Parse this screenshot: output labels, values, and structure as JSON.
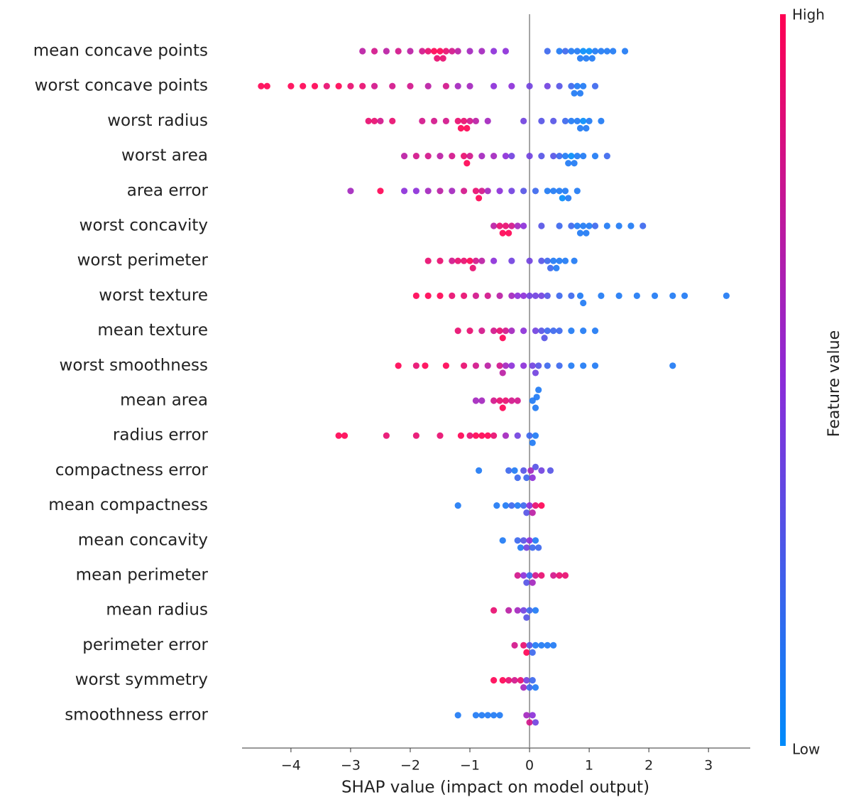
{
  "chart_data": {
    "type": "beeswarm",
    "xlabel": "SHAP value (impact on model output)",
    "xlim": [
      -4.82,
      3.7
    ],
    "xticks": [
      {
        "value": -4,
        "label": "−4"
      },
      {
        "value": -3,
        "label": "−3"
      },
      {
        "value": -2,
        "label": "−2"
      },
      {
        "value": -1,
        "label": "−1"
      },
      0,
      1,
      2,
      3
    ],
    "colorbar": {
      "label": "Feature value",
      "high": "High",
      "low": "Low",
      "colors": [
        "#008bfb",
        "#8b2bd8",
        "#ff0052"
      ]
    },
    "series": [
      {
        "name": "mean concave points",
        "values": [
          -2.8,
          -2.6,
          -2.4,
          -2.2,
          -2.0,
          -1.8,
          -1.7,
          -1.6,
          -1.55,
          -1.5,
          -1.45,
          -1.4,
          -1.3,
          -1.2,
          -1.0,
          -0.8,
          -0.6,
          -0.4,
          0.3,
          0.5,
          0.6,
          0.7,
          0.8,
          0.85,
          0.9,
          0.95,
          1.0,
          1.05,
          1.1,
          1.2,
          1.3,
          1.4,
          1.6
        ],
        "feature_values": [
          0.7,
          0.8,
          0.7,
          0.8,
          0.7,
          0.8,
          0.9,
          1,
          0.9,
          1,
          0.9,
          0.9,
          0.8,
          0.7,
          0.6,
          0.6,
          0.5,
          0.5,
          0.2,
          0.1,
          0.2,
          0.1,
          0.1,
          0.1,
          0,
          0.1,
          0,
          0.1,
          0.1,
          0.1,
          0.1,
          0.1,
          0.1
        ]
      },
      {
        "name": "worst concave points",
        "values": [
          -4.5,
          -4.4,
          -4.0,
          -3.8,
          -3.6,
          -3.4,
          -3.2,
          -3.0,
          -2.8,
          -2.6,
          -2.3,
          -2.0,
          -1.7,
          -1.4,
          -1.2,
          -1.0,
          -0.6,
          -0.3,
          0,
          0.3,
          0.5,
          0.7,
          0.75,
          0.8,
          0.85,
          0.9,
          1.1
        ],
        "feature_values": [
          1,
          1,
          1,
          1,
          1,
          0.9,
          1,
          0.9,
          0.9,
          0.8,
          0.8,
          0.8,
          0.7,
          0.8,
          0.6,
          0.6,
          0.5,
          0.5,
          0.4,
          0.4,
          0.3,
          0.2,
          0.1,
          0.1,
          0.1,
          0.1,
          0.2
        ]
      },
      {
        "name": "worst radius",
        "values": [
          -2.7,
          -2.6,
          -2.5,
          -2.3,
          -1.8,
          -1.6,
          -1.4,
          -1.2,
          -1.15,
          -1.1,
          -1.05,
          -1.0,
          -0.9,
          -0.7,
          -0.1,
          0.2,
          0.4,
          0.6,
          0.7,
          0.8,
          0.85,
          0.9,
          0.95,
          1.0,
          1.2
        ],
        "feature_values": [
          0.9,
          0.9,
          0.8,
          0.9,
          0.8,
          0.8,
          0.8,
          0.9,
          1,
          0.9,
          1,
          0.8,
          0.7,
          0.6,
          0.4,
          0.3,
          0.3,
          0.2,
          0.1,
          0.1,
          0.1,
          0,
          0.1,
          0.1,
          0.1
        ]
      },
      {
        "name": "worst area",
        "values": [
          -2.1,
          -1.9,
          -1.7,
          -1.5,
          -1.3,
          -1.1,
          -1.05,
          -1.0,
          -0.8,
          -0.6,
          -0.4,
          -0.3,
          0,
          0.2,
          0.4,
          0.5,
          0.6,
          0.65,
          0.7,
          0.75,
          0.8,
          0.9,
          1.1,
          1.3
        ],
        "feature_values": [
          0.7,
          0.8,
          0.8,
          0.7,
          0.8,
          0.9,
          1,
          0.8,
          0.6,
          0.6,
          0.5,
          0.4,
          0.4,
          0.3,
          0.3,
          0.2,
          0.1,
          0.1,
          0,
          0.1,
          0.1,
          0.1,
          0.1,
          0.2
        ]
      },
      {
        "name": "area error",
        "values": [
          -3.0,
          -2.5,
          -2.1,
          -1.9,
          -1.7,
          -1.5,
          -1.3,
          -1.1,
          -0.9,
          -0.85,
          -0.8,
          -0.7,
          -0.5,
          -0.3,
          -0.1,
          0.1,
          0.3,
          0.4,
          0.5,
          0.55,
          0.6,
          0.65,
          0.8
        ],
        "feature_values": [
          0.6,
          1,
          0.5,
          0.5,
          0.6,
          0.7,
          0.6,
          0.8,
          0.9,
          1,
          0.8,
          0.6,
          0.5,
          0.4,
          0.3,
          0.2,
          0.1,
          0.1,
          0.1,
          0,
          0.1,
          0.1,
          0.1
        ]
      },
      {
        "name": "worst concavity",
        "values": [
          -0.6,
          -0.5,
          -0.45,
          -0.4,
          -0.35,
          -0.3,
          -0.2,
          -0.1,
          0.2,
          0.5,
          0.7,
          0.8,
          0.85,
          0.9,
          0.95,
          1.0,
          1.1,
          1.3,
          1.5,
          1.7,
          1.9
        ],
        "feature_values": [
          0.7,
          0.9,
          1,
          0.9,
          1,
          0.8,
          0.6,
          0.5,
          0.3,
          0.2,
          0.2,
          0.1,
          0.1,
          0.1,
          0.1,
          0.1,
          0.2,
          0.1,
          0.1,
          0.1,
          0.2
        ]
      },
      {
        "name": "worst perimeter",
        "values": [
          -1.7,
          -1.5,
          -1.3,
          -1.2,
          -1.1,
          -1.0,
          -0.95,
          -0.9,
          -0.8,
          -0.6,
          -0.3,
          0,
          0.2,
          0.3,
          0.35,
          0.4,
          0.45,
          0.5,
          0.6,
          0.75
        ],
        "feature_values": [
          0.9,
          0.9,
          0.8,
          0.9,
          0.9,
          1,
          0.9,
          0.8,
          0.7,
          0.5,
          0.4,
          0.4,
          0.3,
          0.2,
          0.2,
          0.1,
          0.1,
          0.1,
          0.1,
          0.1
        ]
      },
      {
        "name": "worst texture",
        "values": [
          -1.9,
          -1.7,
          -1.5,
          -1.3,
          -1.1,
          -0.9,
          -0.7,
          -0.5,
          -0.3,
          -0.2,
          -0.1,
          0,
          0.1,
          0.2,
          0.3,
          0.5,
          0.7,
          0.85,
          0.9,
          1.2,
          1.5,
          1.8,
          2.1,
          2.4,
          2.6,
          3.3
        ],
        "feature_values": [
          1,
          1,
          1,
          0.9,
          0.9,
          0.8,
          0.8,
          0.7,
          0.6,
          0.5,
          0.5,
          0.4,
          0.4,
          0.4,
          0.3,
          0.2,
          0.2,
          0.1,
          0.1,
          0.1,
          0.1,
          0.1,
          0.1,
          0.1,
          0.1,
          0.1
        ]
      },
      {
        "name": "mean texture",
        "values": [
          -1.2,
          -1.0,
          -0.8,
          -0.6,
          -0.5,
          -0.45,
          -0.4,
          -0.3,
          -0.1,
          0.1,
          0.2,
          0.25,
          0.3,
          0.4,
          0.5,
          0.7,
          0.9,
          1.1
        ],
        "feature_values": [
          0.9,
          0.9,
          0.8,
          0.8,
          0.9,
          1,
          0.8,
          0.6,
          0.5,
          0.4,
          0.3,
          0.3,
          0.2,
          0.2,
          0.2,
          0.1,
          0.1,
          0.1
        ]
      },
      {
        "name": "worst smoothness",
        "values": [
          -2.2,
          -1.9,
          -1.75,
          -1.4,
          -1.1,
          -0.9,
          -0.7,
          -0.5,
          -0.45,
          -0.4,
          -0.3,
          -0.1,
          0.05,
          0.1,
          0.15,
          0.3,
          0.5,
          0.7,
          0.9,
          1.1,
          2.4
        ],
        "feature_values": [
          1,
          0.9,
          1,
          1,
          0.9,
          0.8,
          0.7,
          0.8,
          0.7,
          0.6,
          0.5,
          0.5,
          0.4,
          0.4,
          0.3,
          0.2,
          0.2,
          0.1,
          0.1,
          0.1,
          0.1
        ]
      },
      {
        "name": "mean area",
        "values": [
          -0.9,
          -0.8,
          -0.6,
          -0.5,
          -0.45,
          -0.4,
          -0.3,
          -0.2,
          0.05,
          0.1,
          0.12,
          0.15
        ],
        "feature_values": [
          0.6,
          0.6,
          0.8,
          0.9,
          1,
          0.9,
          0.8,
          0.8,
          0.1,
          0.1,
          0.1,
          0.1
        ]
      },
      {
        "name": "radius error",
        "values": [
          -3.2,
          -3.1,
          -2.4,
          -1.9,
          -1.5,
          -1.15,
          -1.0,
          -0.9,
          -0.8,
          -0.7,
          -0.6,
          -0.4,
          -0.2,
          0,
          0.05,
          0.1
        ],
        "feature_values": [
          1,
          1,
          0.9,
          0.9,
          0.9,
          1,
          0.9,
          1,
          1,
          1,
          0.9,
          0.6,
          0.4,
          0.2,
          0.1,
          0.1
        ]
      },
      {
        "name": "compactness error",
        "values": [
          -0.85,
          -0.35,
          -0.25,
          -0.2,
          -0.1,
          -0.05,
          0.02,
          0.05,
          0.1,
          0.2,
          0.35
        ],
        "feature_values": [
          0.1,
          0.2,
          0.1,
          0.2,
          0.3,
          0.2,
          0.6,
          0.5,
          0.3,
          0.4,
          0.3
        ]
      },
      {
        "name": "mean compactness",
        "values": [
          -1.2,
          -0.55,
          -0.4,
          -0.3,
          -0.2,
          -0.1,
          -0.05,
          0,
          0.05,
          0.1,
          0.2
        ],
        "feature_values": [
          0.1,
          0.1,
          0.1,
          0.2,
          0.1,
          0.2,
          0.3,
          0.5,
          0.7,
          0.9,
          1
        ]
      },
      {
        "name": "mean concavity",
        "values": [
          -0.45,
          -0.2,
          -0.15,
          -0.1,
          -0.05,
          0,
          0.05,
          0.1,
          0.15
        ],
        "feature_values": [
          0.1,
          0.2,
          0.1,
          0.3,
          0.4,
          0.5,
          0.2,
          0.1,
          0.2
        ]
      },
      {
        "name": "mean perimeter",
        "values": [
          -0.2,
          -0.1,
          -0.05,
          0,
          0.05,
          0.1,
          0.2,
          0.4,
          0.5,
          0.6
        ],
        "feature_values": [
          0.8,
          0.5,
          0.3,
          0.2,
          0.6,
          0.8,
          0.9,
          0.8,
          0.9,
          0.9
        ]
      },
      {
        "name": "mean radius",
        "values": [
          -0.6,
          -0.35,
          -0.2,
          -0.1,
          -0.05,
          0,
          0.1
        ],
        "feature_values": [
          0.9,
          0.7,
          0.6,
          0.4,
          0.3,
          0.2,
          0.1
        ]
      },
      {
        "name": "perimeter error",
        "values": [
          -0.25,
          -0.1,
          -0.05,
          0,
          0.05,
          0.1,
          0.2,
          0.3,
          0.4
        ],
        "feature_values": [
          0.8,
          0.9,
          1,
          0.3,
          0.2,
          0.1,
          0.1,
          0.1,
          0.1
        ]
      },
      {
        "name": "worst symmetry",
        "values": [
          -0.6,
          -0.45,
          -0.35,
          -0.25,
          -0.15,
          -0.1,
          -0.05,
          0,
          0.05,
          0.1
        ],
        "feature_values": [
          1,
          1,
          0.9,
          0.8,
          0.9,
          0.6,
          0.4,
          0.2,
          0.2,
          0.1
        ]
      },
      {
        "name": "smoothness error",
        "values": [
          -1.2,
          -0.9,
          -0.8,
          -0.7,
          -0.6,
          -0.5,
          -0.05,
          0,
          0.05,
          0.1
        ],
        "feature_values": [
          0.1,
          0.1,
          0.1,
          0.1,
          0.1,
          0.1,
          0.6,
          0.8,
          0.5,
          0.4
        ]
      }
    ]
  }
}
